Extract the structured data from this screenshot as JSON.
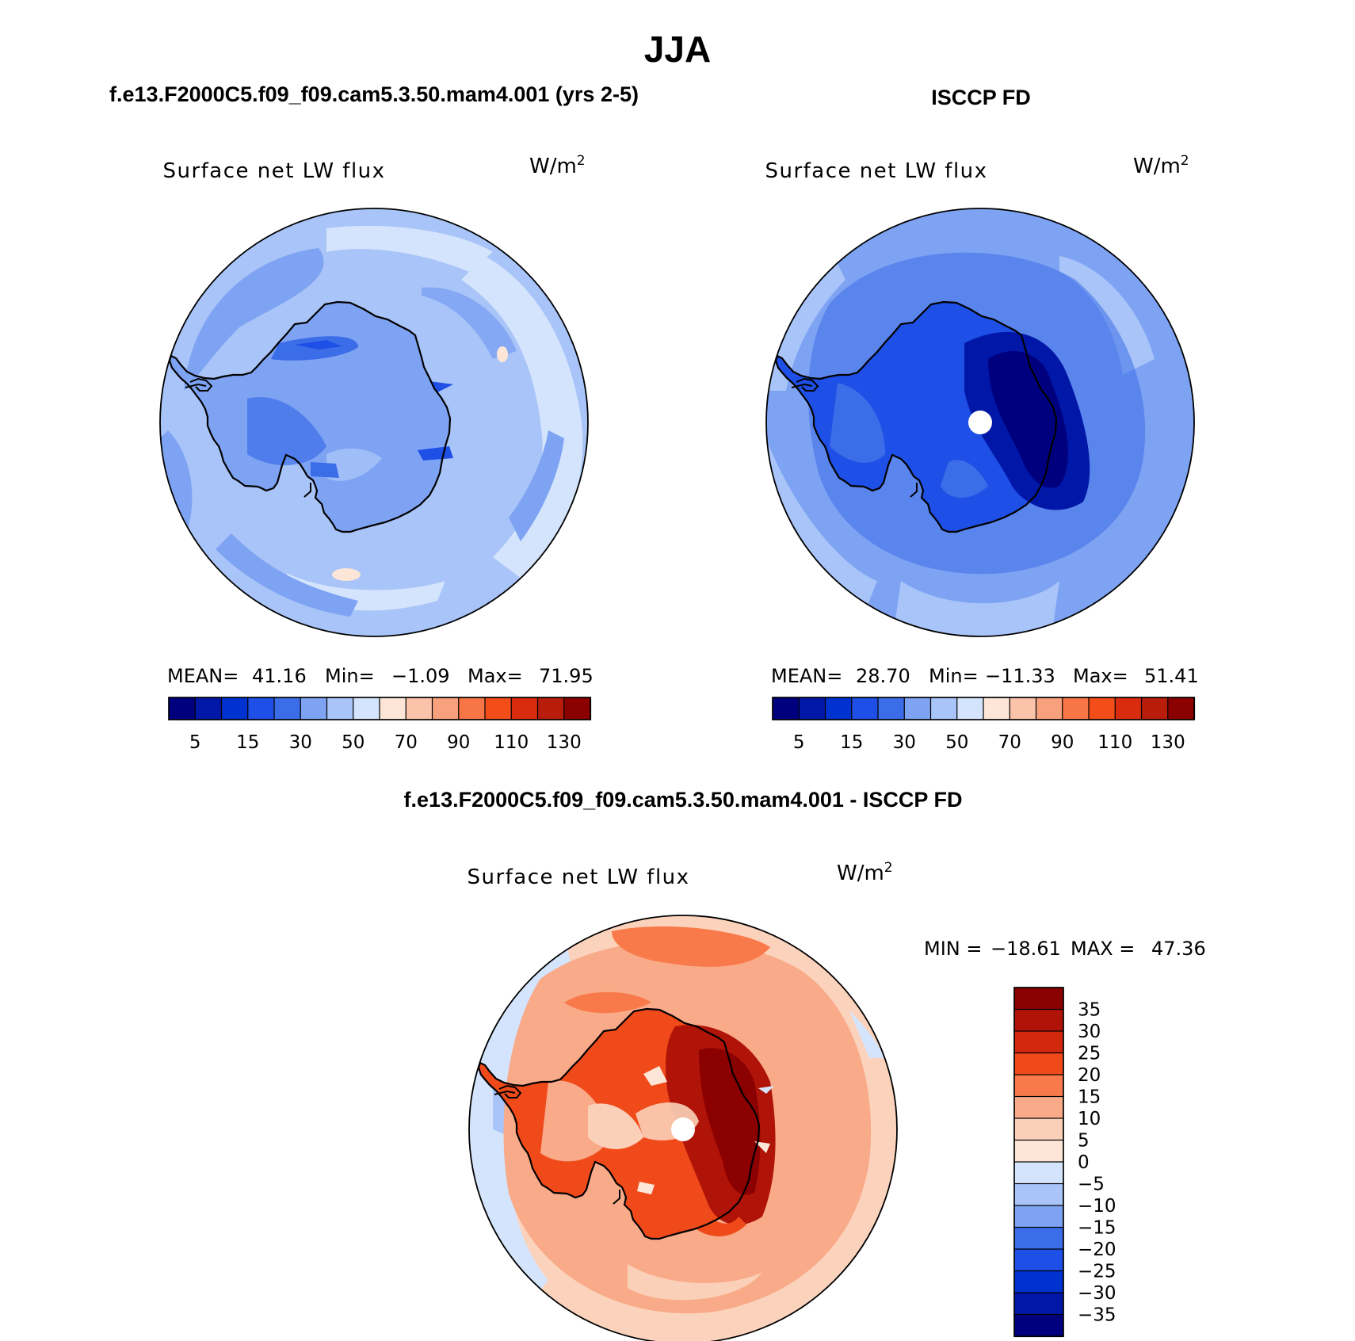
{
  "title": "JJA",
  "colors": {
    "model_ocean": "#a8c4f8",
    "obs_ocean": "#7ea3f3",
    "diff_background": "#fbd3bc",
    "coastline": "#000000",
    "pole_hole": "#ffffff"
  },
  "chart_data": [
    {
      "type": "heatmap",
      "panel_title": "f.e13.F2000C5.f09_f09.cam5.3.50.mam4.001 (yrs 2-5)",
      "field_label": "Surface net LW flux",
      "units_prefix": "W/m",
      "units_sup": "2",
      "projection": "south polar stereographic",
      "stats": {
        "mean_label": "MEAN=",
        "mean": "41.16",
        "min_label": "Min=",
        "min": "−1.09",
        "max_label": "Max=",
        "max": "71.95"
      },
      "colorbar": {
        "orientation": "horizontal",
        "colors": [
          "#00007f",
          "#0017a8",
          "#0032cf",
          "#1e4fe6",
          "#3c6de8",
          "#7ea3f3",
          "#a8c4f8",
          "#d4e4fc",
          "#fde6d7",
          "#fbc3a9",
          "#f9a07d",
          "#f87646",
          "#f34e1a",
          "#d92c0e",
          "#b81c0a",
          "#8b0000"
        ],
        "tick_labels": [
          "5",
          "15",
          "30",
          "50",
          "70",
          "90",
          "110",
          "130"
        ]
      }
    },
    {
      "type": "heatmap",
      "panel_title": "ISCCP FD",
      "field_label": "Surface net LW flux",
      "units_prefix": "W/m",
      "units_sup": "2",
      "projection": "south polar stereographic",
      "stats": {
        "mean_label": "MEAN=",
        "mean": "28.70",
        "min_label": "Min=",
        "min": "−11.33",
        "max_label": "Max=",
        "max": "51.41"
      },
      "colorbar": {
        "orientation": "horizontal",
        "colors": [
          "#00007f",
          "#0017a8",
          "#0032cf",
          "#1e4fe6",
          "#3c6de8",
          "#7ea3f3",
          "#a8c4f8",
          "#d4e4fc",
          "#fde6d7",
          "#fbc3a9",
          "#f9a07d",
          "#f87646",
          "#f34e1a",
          "#d92c0e",
          "#b81c0a",
          "#8b0000"
        ],
        "tick_labels": [
          "5",
          "15",
          "30",
          "50",
          "70",
          "90",
          "110",
          "130"
        ]
      }
    },
    {
      "type": "heatmap",
      "panel_title": "f.e13.F2000C5.f09_f09.cam5.3.50.mam4.001 - ISCCP FD",
      "field_label": "Surface net LW flux",
      "units_prefix": "W/m",
      "units_sup": "2",
      "projection": "south polar stereographic",
      "stats": {
        "min_label": "MIN =",
        "min": "−18.61",
        "max_label": "MAX =",
        "max": "47.36"
      },
      "colorbar": {
        "orientation": "vertical",
        "colors_top_to_bottom": [
          "#8b0000",
          "#b01408",
          "#d2280c",
          "#f04a1a",
          "#f87a4a",
          "#f9aa88",
          "#fbd0b8",
          "#fde6d7",
          "#d4e4fc",
          "#a8c4f8",
          "#7ea3f3",
          "#3c6de8",
          "#1e4fe6",
          "#0032cf",
          "#0017a8",
          "#00007f"
        ],
        "tick_labels": [
          "35",
          "30",
          "25",
          "20",
          "15",
          "10",
          "5",
          "0",
          "−5",
          "−10",
          "−15",
          "−20",
          "−25",
          "−30",
          "−35"
        ]
      }
    }
  ]
}
